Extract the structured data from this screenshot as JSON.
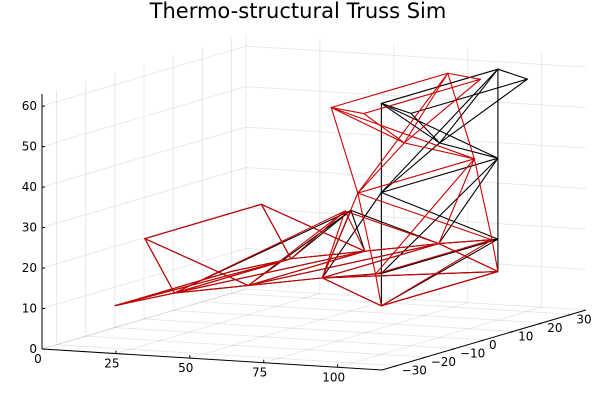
{
  "chart_data": {
    "type": "3d-line",
    "title": "Thermo-structural Truss Sim",
    "x_ticks": [
      "0",
      "25",
      "50",
      "75",
      "100"
    ],
    "y_ticks": [
      "−30",
      "−20",
      "−10",
      "0",
      "10",
      "20",
      "30"
    ],
    "z_ticks": [
      "0",
      "10",
      "20",
      "30",
      "40",
      "50",
      "60"
    ],
    "xlim": [
      0,
      115
    ],
    "ylim": [
      -35,
      35
    ],
    "zlim": [
      0,
      63
    ],
    "legend": "none",
    "grid": true,
    "colors": {
      "original": "#000000",
      "deformed": "#cc0000"
    },
    "series": [
      {
        "color": "#000000",
        "nodes": [
          [
            10,
            -20,
            8
          ],
          [
            10,
            20,
            8
          ],
          [
            30,
            -20,
            12
          ],
          [
            30,
            20,
            12
          ],
          [
            55,
            -20,
            15
          ],
          [
            55,
            20,
            15
          ],
          [
            80,
            -20,
            18
          ],
          [
            80,
            20,
            18
          ],
          [
            100,
            -20,
            12
          ],
          [
            100,
            20,
            12
          ],
          [
            100,
            -20,
            20
          ],
          [
            100,
            20,
            20
          ],
          [
            100,
            -20,
            40
          ],
          [
            100,
            20,
            40
          ],
          [
            100,
            -20,
            62
          ],
          [
            100,
            20,
            62
          ],
          [
            110,
            -20,
            60
          ],
          [
            110,
            20,
            60
          ],
          [
            20,
            -20,
            25
          ],
          [
            20,
            20,
            25
          ],
          [
            70,
            0,
            30
          ],
          [
            100,
            0,
            48
          ]
        ],
        "members": [
          [
            0,
            2
          ],
          [
            2,
            4
          ],
          [
            4,
            6
          ],
          [
            6,
            8
          ],
          [
            1,
            3
          ],
          [
            3,
            5
          ],
          [
            5,
            7
          ],
          [
            7,
            9
          ],
          [
            0,
            1
          ],
          [
            2,
            3
          ],
          [
            4,
            5
          ],
          [
            6,
            7
          ],
          [
            8,
            9
          ],
          [
            0,
            3
          ],
          [
            2,
            5
          ],
          [
            4,
            7
          ],
          [
            6,
            9
          ],
          [
            18,
            19
          ],
          [
            18,
            2
          ],
          [
            19,
            3
          ],
          [
            18,
            4
          ],
          [
            19,
            5
          ],
          [
            2,
            20
          ],
          [
            3,
            20
          ],
          [
            4,
            20
          ],
          [
            5,
            20
          ],
          [
            20,
            6
          ],
          [
            20,
            7
          ],
          [
            8,
            10
          ],
          [
            9,
            11
          ],
          [
            10,
            11
          ],
          [
            6,
            10
          ],
          [
            7,
            11
          ],
          [
            10,
            12
          ],
          [
            11,
            13
          ],
          [
            12,
            13
          ],
          [
            10,
            13
          ],
          [
            11,
            12
          ],
          [
            12,
            14
          ],
          [
            13,
            15
          ],
          [
            14,
            15
          ],
          [
            12,
            15
          ],
          [
            13,
            14
          ],
          [
            14,
            16
          ],
          [
            15,
            17
          ],
          [
            16,
            17
          ],
          [
            12,
            21
          ],
          [
            13,
            21
          ],
          [
            21,
            14
          ],
          [
            21,
            15
          ],
          [
            21,
            16
          ],
          [
            21,
            17
          ],
          [
            6,
            12
          ],
          [
            7,
            13
          ],
          [
            8,
            11
          ]
        ]
      },
      {
        "color": "#cc0000",
        "nodes": [
          [
            10,
            -20,
            8
          ],
          [
            10,
            20,
            8
          ],
          [
            30,
            -20,
            12
          ],
          [
            30,
            20,
            12
          ],
          [
            55,
            -20,
            15
          ],
          [
            55,
            20,
            15
          ],
          [
            80,
            -20,
            18
          ],
          [
            80,
            20,
            18
          ],
          [
            100,
            -20,
            12
          ],
          [
            100,
            20,
            12
          ],
          [
            99,
            -21,
            20
          ],
          [
            99,
            19,
            20
          ],
          [
            94,
            -22,
            40
          ],
          [
            94,
            18,
            40
          ],
          [
            86,
            -23,
            61
          ],
          [
            86,
            17,
            61
          ],
          [
            97,
            -23,
            60
          ],
          [
            97,
            17,
            60
          ],
          [
            20,
            -20,
            25
          ],
          [
            20,
            20,
            25
          ],
          [
            69,
            -1,
            30
          ],
          [
            90,
            -2,
            48
          ]
        ],
        "members": [
          [
            0,
            2
          ],
          [
            2,
            4
          ],
          [
            4,
            6
          ],
          [
            6,
            8
          ],
          [
            1,
            3
          ],
          [
            3,
            5
          ],
          [
            5,
            7
          ],
          [
            7,
            9
          ],
          [
            0,
            1
          ],
          [
            2,
            3
          ],
          [
            4,
            5
          ],
          [
            6,
            7
          ],
          [
            8,
            9
          ],
          [
            0,
            3
          ],
          [
            2,
            5
          ],
          [
            4,
            7
          ],
          [
            6,
            9
          ],
          [
            18,
            19
          ],
          [
            18,
            2
          ],
          [
            19,
            3
          ],
          [
            18,
            4
          ],
          [
            19,
            5
          ],
          [
            2,
            20
          ],
          [
            3,
            20
          ],
          [
            4,
            20
          ],
          [
            5,
            20
          ],
          [
            20,
            6
          ],
          [
            20,
            7
          ],
          [
            8,
            10
          ],
          [
            9,
            11
          ],
          [
            10,
            11
          ],
          [
            6,
            10
          ],
          [
            7,
            11
          ],
          [
            10,
            12
          ],
          [
            11,
            13
          ],
          [
            12,
            13
          ],
          [
            10,
            13
          ],
          [
            11,
            12
          ],
          [
            12,
            14
          ],
          [
            13,
            15
          ],
          [
            14,
            15
          ],
          [
            12,
            15
          ],
          [
            13,
            14
          ],
          [
            14,
            16
          ],
          [
            15,
            17
          ],
          [
            16,
            17
          ],
          [
            12,
            21
          ],
          [
            13,
            21
          ],
          [
            21,
            14
          ],
          [
            21,
            15
          ],
          [
            21,
            16
          ],
          [
            21,
            17
          ],
          [
            6,
            12
          ],
          [
            7,
            13
          ],
          [
            8,
            11
          ]
        ]
      }
    ]
  }
}
